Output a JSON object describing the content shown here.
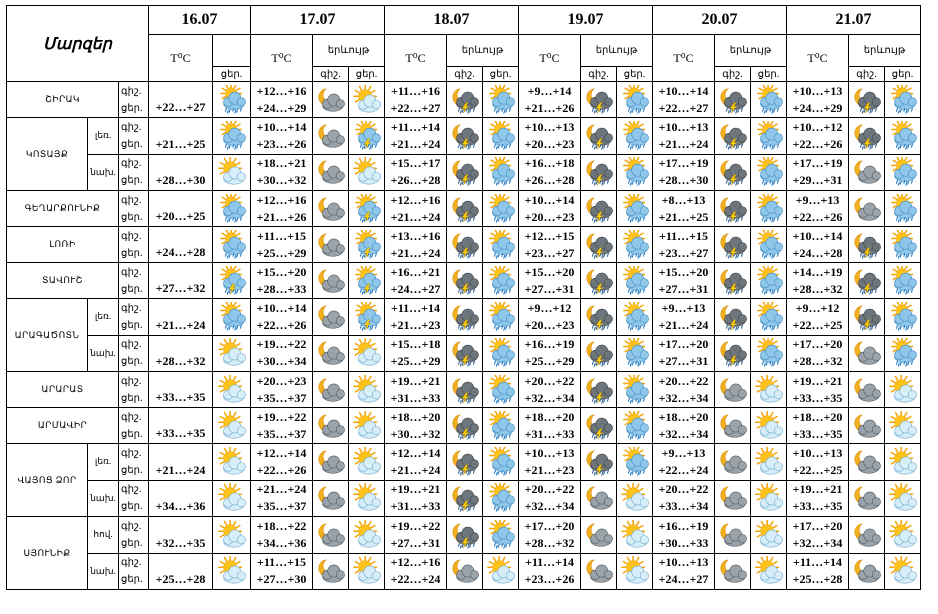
{
  "header": {
    "region_label": "Մարզեր",
    "temp_label": "T⁰C",
    "weather_label": "երևույթ",
    "night_short": "գիշ.",
    "day_short": "ցեր."
  },
  "dates": [
    "16.07",
    "17.07",
    "18.07",
    "19.07",
    "20.07",
    "21.07"
  ],
  "row_labels": {
    "night": "գիշ.",
    "day": "ցեր."
  },
  "regions": [
    {
      "name": "ՇԻՐԱԿ",
      "rows": [
        {
          "zone": "",
          "t16": "+22…+27",
          "icon16": "sun-cloud-rain",
          "days": [
            {
              "tn": "+12…+16",
              "td": "+24…+29",
              "n": "moon-cloud",
              "d": "sun-cloud"
            },
            {
              "tn": "+11…+16",
              "td": "+22…+27",
              "n": "moon-storm",
              "d": "sun-cloud-rain"
            },
            {
              "tn": "+9…+14",
              "td": "+21…+26",
              "n": "moon-storm",
              "d": "sun-cloud-rain"
            },
            {
              "tn": "+10…+14",
              "td": "+22…+27",
              "n": "moon-storm",
              "d": "sun-cloud-rain"
            },
            {
              "tn": "+10…+13",
              "td": "+24…+29",
              "n": "moon-storm",
              "d": "sun-cloud-rain"
            }
          ]
        }
      ]
    },
    {
      "name": "ԿՈՏԱՅՔ",
      "rows": [
        {
          "zone": "լեռ.",
          "t16": "+21…+25",
          "icon16": "sun-cloud-rain",
          "days": [
            {
              "tn": "+10…+14",
              "td": "+23…+26",
              "n": "moon-cloud",
              "d": "sun-storm"
            },
            {
              "tn": "+11…+14",
              "td": "+21…+24",
              "n": "moon-storm",
              "d": "sun-cloud-rain"
            },
            {
              "tn": "+10…+13",
              "td": "+20…+23",
              "n": "moon-storm",
              "d": "sun-cloud-rain"
            },
            {
              "tn": "+10…+13",
              "td": "+21…+24",
              "n": "moon-storm",
              "d": "sun-cloud-rain"
            },
            {
              "tn": "+10…+12",
              "td": "+22…+26",
              "n": "moon-storm",
              "d": "sun-cloud-rain"
            }
          ]
        },
        {
          "zone": "նախ.",
          "t16": "+28…+30",
          "icon16": "sun-cloud",
          "days": [
            {
              "tn": "+18…+21",
              "td": "+30…+32",
              "n": "moon-cloud",
              "d": "sun-cloud"
            },
            {
              "tn": "+15…+17",
              "td": "+26…+28",
              "n": "moon-storm",
              "d": "sun-cloud-rain"
            },
            {
              "tn": "+16…+18",
              "td": "+26…+28",
              "n": "moon-storm",
              "d": "sun-cloud-rain"
            },
            {
              "tn": "+17…+19",
              "td": "+28…+30",
              "n": "moon-storm",
              "d": "sun-cloud-rain"
            },
            {
              "tn": "+17…+19",
              "td": "+29…+31",
              "n": "moon-cloud",
              "d": "sun-cloud-rain"
            }
          ]
        }
      ]
    },
    {
      "name": "ԳԵՂԱՐՔՈՒՆԻՔ",
      "rows": [
        {
          "zone": "",
          "t16": "+20…+25",
          "icon16": "sun-cloud-rain",
          "days": [
            {
              "tn": "+12…+16",
              "td": "+21…+26",
              "n": "moon-cloud",
              "d": "sun-storm"
            },
            {
              "tn": "+12…+16",
              "td": "+21…+24",
              "n": "moon-storm",
              "d": "sun-cloud-rain"
            },
            {
              "tn": "+10…+14",
              "td": "+20…+23",
              "n": "moon-storm",
              "d": "sun-cloud-rain"
            },
            {
              "tn": "+8…+13",
              "td": "+21…+25",
              "n": "moon-storm",
              "d": "sun-cloud-rain"
            },
            {
              "tn": "+9…+13",
              "td": "+22…+26",
              "n": "moon-cloud",
              "d": "sun-cloud-rain"
            }
          ]
        }
      ]
    },
    {
      "name": "ԼՈՌԻ",
      "rows": [
        {
          "zone": "",
          "t16": "+24…+28",
          "icon16": "sun-cloud-rain",
          "days": [
            {
              "tn": "+11…+15",
              "td": "+25…+29",
              "n": "moon-cloud",
              "d": "sun-storm"
            },
            {
              "tn": "+13…+16",
              "td": "+21…+24",
              "n": "moon-storm",
              "d": "sun-cloud-rain"
            },
            {
              "tn": "+12…+15",
              "td": "+23…+27",
              "n": "moon-storm",
              "d": "sun-cloud-rain"
            },
            {
              "tn": "+11…+15",
              "td": "+23…+27",
              "n": "moon-storm",
              "d": "sun-cloud-rain"
            },
            {
              "tn": "+10…+14",
              "td": "+24…+28",
              "n": "moon-storm",
              "d": "sun-cloud-rain"
            }
          ]
        }
      ]
    },
    {
      "name": "ՏԱՎՈՒՇ",
      "rows": [
        {
          "zone": "",
          "t16": "+27…+32",
          "icon16": "sun-storm",
          "days": [
            {
              "tn": "+15…+20",
              "td": "+28…+33",
              "n": "moon-cloud",
              "d": "sun-storm"
            },
            {
              "tn": "+16…+21",
              "td": "+24…+27",
              "n": "moon-storm",
              "d": "sun-cloud-rain"
            },
            {
              "tn": "+15…+20",
              "td": "+27…+31",
              "n": "moon-storm",
              "d": "sun-cloud-rain"
            },
            {
              "tn": "+15…+20",
              "td": "+27…+31",
              "n": "moon-storm",
              "d": "sun-cloud-rain"
            },
            {
              "tn": "+14…+19",
              "td": "+28…+32",
              "n": "moon-storm",
              "d": "sun-cloud-rain"
            }
          ]
        }
      ]
    },
    {
      "name": "ԱՐԱԳԱԾՈՏՆ",
      "rows": [
        {
          "zone": "լեռ.",
          "t16": "+21…+24",
          "icon16": "sun-cloud-rain",
          "days": [
            {
              "tn": "+10…+14",
              "td": "+22…+26",
              "n": "moon-cloud",
              "d": "sun-storm"
            },
            {
              "tn": "+11…+14",
              "td": "+21…+23",
              "n": "moon-storm",
              "d": "sun-cloud-rain"
            },
            {
              "tn": "+9…+12",
              "td": "+20…+23",
              "n": "moon-storm",
              "d": "sun-cloud-rain"
            },
            {
              "tn": "+9…+13",
              "td": "+21…+24",
              "n": "moon-storm",
              "d": "sun-cloud-rain"
            },
            {
              "tn": "+9…+12",
              "td": "+22…+25",
              "n": "moon-storm",
              "d": "sun-cloud-rain"
            }
          ]
        },
        {
          "zone": "նախ.",
          "t16": "+28…+32",
          "icon16": "sun-cloud",
          "days": [
            {
              "tn": "+19…+22",
              "td": "+30…+34",
              "n": "moon-cloud",
              "d": "sun-cloud"
            },
            {
              "tn": "+15…+18",
              "td": "+25…+29",
              "n": "moon-storm",
              "d": "sun-cloud-rain"
            },
            {
              "tn": "+16…+19",
              "td": "+25…+29",
              "n": "moon-storm",
              "d": "sun-cloud-rain"
            },
            {
              "tn": "+17…+20",
              "td": "+27…+31",
              "n": "moon-storm",
              "d": "sun-cloud-rain"
            },
            {
              "tn": "+17…+20",
              "td": "+28…+32",
              "n": "moon-cloud",
              "d": "sun-cloud-rain"
            }
          ]
        }
      ]
    },
    {
      "name": "ԱՐԱՐԱՏ",
      "rows": [
        {
          "zone": "",
          "t16": "+33…+35",
          "icon16": "sun-cloud",
          "days": [
            {
              "tn": "+20…+23",
              "td": "+35…+37",
              "n": "moon-cloud",
              "d": "sun-cloud"
            },
            {
              "tn": "+19…+21",
              "td": "+31…+33",
              "n": "moon-storm",
              "d": "sun-cloud-rain"
            },
            {
              "tn": "+20…+22",
              "td": "+32…+34",
              "n": "moon-storm",
              "d": "sun-cloud-rain"
            },
            {
              "tn": "+20…+22",
              "td": "+32…+34",
              "n": "moon-cloud",
              "d": "sun-cloud"
            },
            {
              "tn": "+19…+21",
              "td": "+33…+35",
              "n": "moon-cloud",
              "d": "sun-cloud"
            }
          ]
        }
      ]
    },
    {
      "name": "ԱՐՄԱՎԻՐ",
      "rows": [
        {
          "zone": "",
          "t16": "+33…+35",
          "icon16": "sun-cloud",
          "days": [
            {
              "tn": "+19…+22",
              "td": "+35…+37",
              "n": "moon-cloud",
              "d": "sun-cloud"
            },
            {
              "tn": "+18…+20",
              "td": "+30…+32",
              "n": "moon-storm",
              "d": "sun-cloud-rain"
            },
            {
              "tn": "+18…+20",
              "td": "+31…+33",
              "n": "moon-storm",
              "d": "sun-cloud-rain"
            },
            {
              "tn": "+18…+20",
              "td": "+32…+34",
              "n": "moon-cloud",
              "d": "sun-cloud"
            },
            {
              "tn": "+18…+20",
              "td": "+33…+35",
              "n": "moon-cloud",
              "d": "sun-cloud"
            }
          ]
        }
      ]
    },
    {
      "name": "ՎԱՅՈՑ ՁՈՐ",
      "rows": [
        {
          "zone": "լեռ.",
          "t16": "+21…+24",
          "icon16": "sun-cloud",
          "days": [
            {
              "tn": "+12…+14",
              "td": "+22…+26",
              "n": "moon-cloud",
              "d": "sun-cloud"
            },
            {
              "tn": "+12…+14",
              "td": "+21…+24",
              "n": "moon-storm",
              "d": "sun-cloud-rain"
            },
            {
              "tn": "+10…+13",
              "td": "+21…+23",
              "n": "moon-storm",
              "d": "sun-cloud-rain"
            },
            {
              "tn": "+9…+13",
              "td": "+22…+24",
              "n": "moon-cloud",
              "d": "sun-cloud"
            },
            {
              "tn": "+10…+13",
              "td": "+22…+25",
              "n": "moon-cloud",
              "d": "sun-cloud"
            }
          ]
        },
        {
          "zone": "նախ.",
          "t16": "+34…+36",
          "icon16": "sun-cloud",
          "days": [
            {
              "tn": "+21…+24",
              "td": "+35…+37",
              "n": "moon-cloud",
              "d": "sun-cloud"
            },
            {
              "tn": "+19…+21",
              "td": "+31…+33",
              "n": "moon-storm",
              "d": "sun-cloud-rain"
            },
            {
              "tn": "+20…+22",
              "td": "+32…+34",
              "n": "moon-cloud",
              "d": "sun-cloud"
            },
            {
              "tn": "+20…+22",
              "td": "+33…+34",
              "n": "moon-cloud",
              "d": "sun-cloud"
            },
            {
              "tn": "+19…+21",
              "td": "+33…+35",
              "n": "moon-cloud",
              "d": "sun-cloud"
            }
          ]
        }
      ]
    },
    {
      "name": "ՍՅՈՒՆԻՔ",
      "rows": [
        {
          "zone": "հով.",
          "t16": "+32…+35",
          "icon16": "sun-cloud",
          "days": [
            {
              "tn": "+18…+22",
              "td": "+34…+36",
              "n": "moon-cloud",
              "d": "sun-cloud"
            },
            {
              "tn": "+19…+22",
              "td": "+27…+31",
              "n": "moon-storm",
              "d": "sun-cloud-rain"
            },
            {
              "tn": "+17…+20",
              "td": "+28…+32",
              "n": "moon-cloud",
              "d": "sun-cloud"
            },
            {
              "tn": "+16…+19",
              "td": "+30…+33",
              "n": "moon-cloud",
              "d": "sun-cloud"
            },
            {
              "tn": "+17…+20",
              "td": "+32…+34",
              "n": "moon-cloud",
              "d": "sun-cloud"
            }
          ]
        },
        {
          "zone": "նախ.",
          "t16": "+25…+28",
          "icon16": "sun-cloud",
          "days": [
            {
              "tn": "+11…+15",
              "td": "+27…+30",
              "n": "moon-cloud",
              "d": "sun-cloud"
            },
            {
              "tn": "+12…+16",
              "td": "+22…+24",
              "n": "moon-cloud",
              "d": "sun-cloud"
            },
            {
              "tn": "+11…+14",
              "td": "+23…+26",
              "n": "moon-cloud",
              "d": "sun-cloud"
            },
            {
              "tn": "+10…+13",
              "td": "+24…+27",
              "n": "moon-cloud",
              "d": "sun-cloud"
            },
            {
              "tn": "+11…+14",
              "td": "+25…+28",
              "n": "moon-cloud",
              "d": "sun-cloud"
            }
          ]
        }
      ]
    }
  ]
}
